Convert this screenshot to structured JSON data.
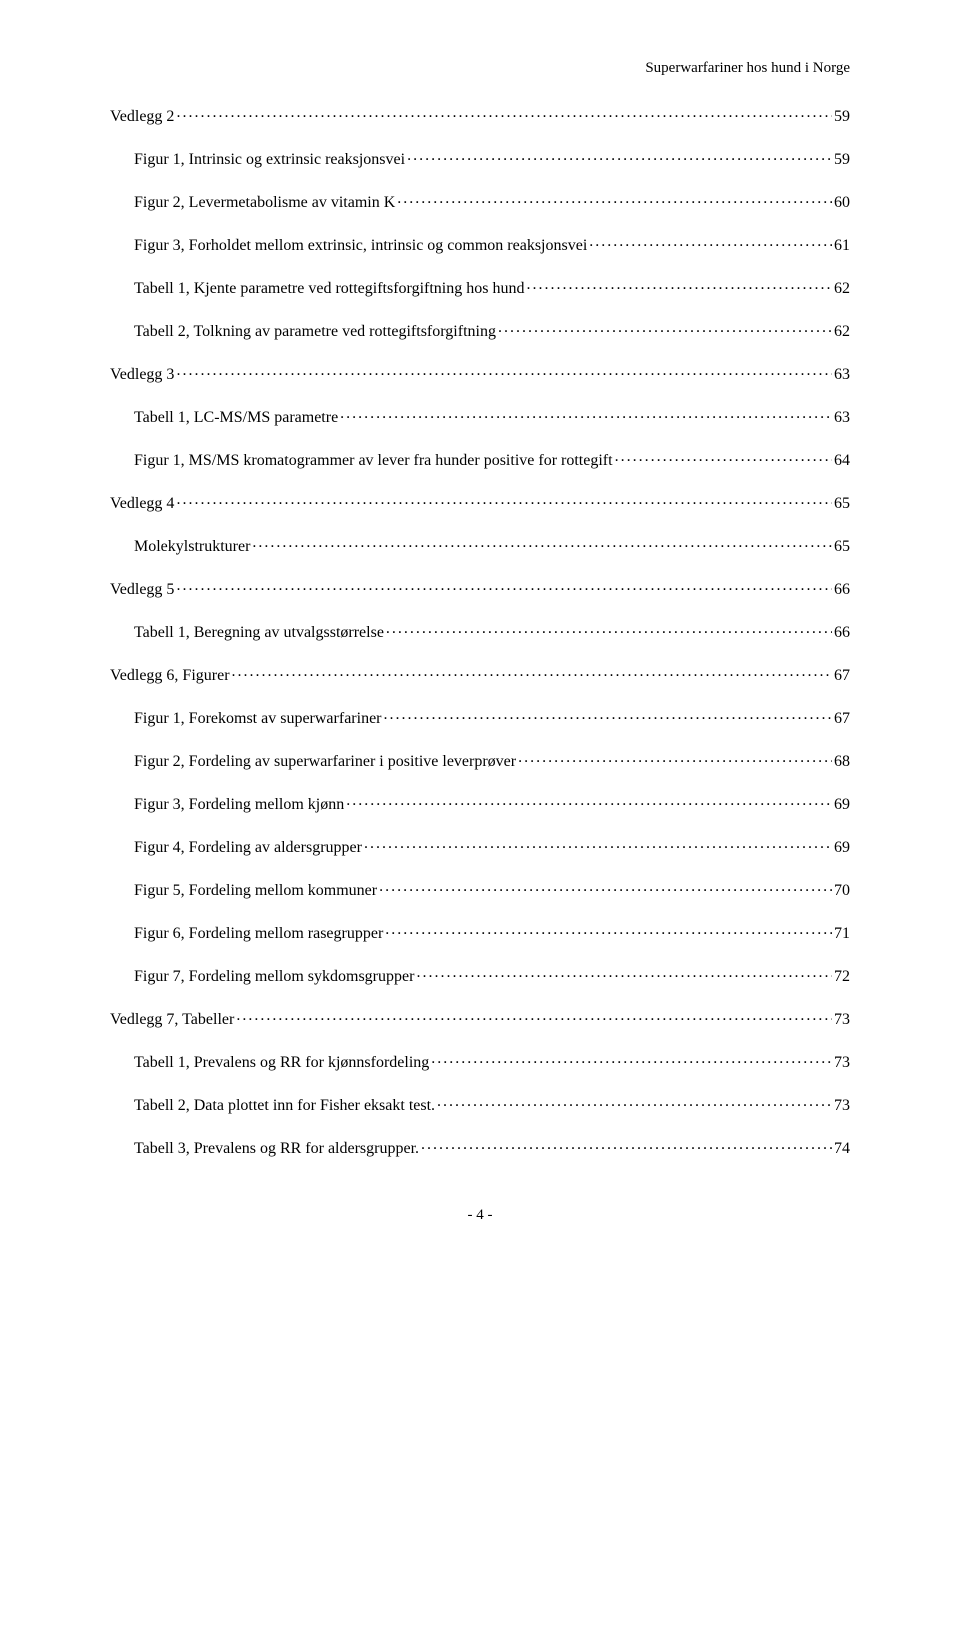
{
  "header": "Superwarfariner hos hund i Norge",
  "toc": [
    {
      "indent": 0,
      "label": "Vedlegg 2",
      "page": "59"
    },
    {
      "indent": 1,
      "label": "Figur 1, Intrinsic og extrinsic reaksjonsvei",
      "page": "59"
    },
    {
      "indent": 1,
      "label": "Figur 2, Levermetabolisme av vitamin K",
      "page": "60"
    },
    {
      "indent": 1,
      "label": "Figur 3, Forholdet mellom extrinsic, intrinsic og common reaksjonsvei",
      "page": "61"
    },
    {
      "indent": 1,
      "label": "Tabell 1, Kjente parametre ved rottegiftsforgiftning hos hund",
      "page": "62"
    },
    {
      "indent": 1,
      "label": "Tabell 2, Tolkning av parametre ved rottegiftsforgiftning",
      "page": "62"
    },
    {
      "indent": 0,
      "label": "Vedlegg 3",
      "page": "63"
    },
    {
      "indent": 1,
      "label": "Tabell 1, LC-MS/MS parametre",
      "page": "63"
    },
    {
      "indent": 1,
      "label": "Figur 1, MS/MS kromatogrammer av lever fra hunder positive for rottegift",
      "page": "64"
    },
    {
      "indent": 0,
      "label": "Vedlegg 4",
      "page": "65"
    },
    {
      "indent": 1,
      "label": "Molekylstrukturer",
      "page": "65"
    },
    {
      "indent": 0,
      "label": "Vedlegg 5",
      "page": "66"
    },
    {
      "indent": 1,
      "label": "Tabell 1, Beregning av utvalgsstørrelse",
      "page": "66"
    },
    {
      "indent": 0,
      "label": "Vedlegg 6, Figurer",
      "page": "67"
    },
    {
      "indent": 1,
      "label": "Figur 1, Forekomst av superwarfariner",
      "page": "67"
    },
    {
      "indent": 1,
      "label": "Figur 2, Fordeling av superwarfariner i positive leverprøver",
      "page": "68"
    },
    {
      "indent": 1,
      "label": "Figur 3, Fordeling mellom kjønn",
      "page": "69"
    },
    {
      "indent": 1,
      "label": "Figur 4, Fordeling av aldersgrupper",
      "page": "69"
    },
    {
      "indent": 1,
      "label": "Figur 5, Fordeling mellom kommuner",
      "page": "70"
    },
    {
      "indent": 1,
      "label": "Figur 6, Fordeling mellom rasegrupper",
      "page": "71"
    },
    {
      "indent": 1,
      "label": "Figur 7, Fordeling mellom sykdomsgrupper",
      "page": "72"
    },
    {
      "indent": 0,
      "label": "Vedlegg 7, Tabeller",
      "page": "73"
    },
    {
      "indent": 1,
      "label": "Tabell 1, Prevalens og RR for kjønnsfordeling",
      "page": "73"
    },
    {
      "indent": 1,
      "label": "Tabell 2, Data plottet inn for Fisher eksakt test.",
      "page": "73"
    },
    {
      "indent": 1,
      "label": "Tabell 3, Prevalens og RR for aldersgrupper.",
      "page": "74"
    }
  ],
  "footer": "- 4 -"
}
